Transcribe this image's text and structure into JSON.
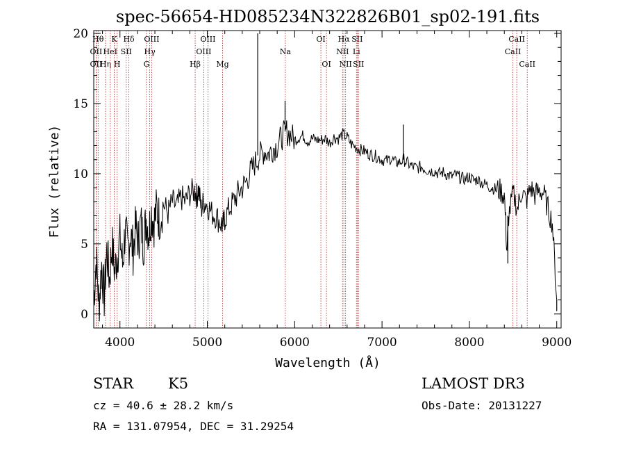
{
  "chart_data": {
    "type": "line",
    "title": "spec-56654-HD085234N322826B01_sp02-191.fits",
    "xlabel": "Wavelength (Å)",
    "ylabel": "Flux (relative)",
    "xlim": [
      3700,
      9050
    ],
    "ylim": [
      -1,
      20.2
    ],
    "xticks": [
      4000,
      5000,
      6000,
      7000,
      8000,
      9000
    ],
    "yticks": [
      0,
      5,
      10,
      15,
      20
    ],
    "line_color": "#000000",
    "marker_color": "#b22222",
    "series": [
      {
        "name": "flux",
        "x": [
          3700,
          3730,
          3760,
          3790,
          3820,
          3850,
          3880,
          3910,
          3940,
          3970,
          4000,
          4030,
          4060,
          4090,
          4120,
          4150,
          4180,
          4210,
          4240,
          4270,
          4300,
          4330,
          4360,
          4390,
          4420,
          4450,
          4500,
          4550,
          4600,
          4650,
          4700,
          4750,
          4800,
          4850,
          4880,
          4900,
          4930,
          4960,
          5000,
          5050,
          5100,
          5150,
          5180,
          5200,
          5250,
          5300,
          5350,
          5400,
          5450,
          5500,
          5550,
          5600,
          5650,
          5700,
          5750,
          5800,
          5850,
          5900,
          5950,
          6000,
          6050,
          6100,
          6150,
          6200,
          6250,
          6300,
          6350,
          6400,
          6450,
          6500,
          6550,
          6600,
          6650,
          6700,
          6750,
          6800,
          6850,
          6900,
          6950,
          7000,
          7050,
          7100,
          7150,
          7200,
          7250,
          7300,
          7350,
          7400,
          7450,
          7500,
          7550,
          7600,
          7650,
          7700,
          7750,
          7800,
          7850,
          7900,
          7950,
          8000,
          8050,
          8100,
          8150,
          8200,
          8250,
          8300,
          8350,
          8400,
          8430,
          8450,
          8500,
          8550,
          8600,
          8650,
          8700,
          8750,
          8800,
          8850,
          8900,
          8950,
          9000
        ],
        "y": [
          1.0,
          4.0,
          0.5,
          3.5,
          1.2,
          4.5,
          2.5,
          5.0,
          3.0,
          4.2,
          5.5,
          3.5,
          6.0,
          4.5,
          5.8,
          4.5,
          6.2,
          5.2,
          6.5,
          5.0,
          6.8,
          5.8,
          7.2,
          6.5,
          7.5,
          6.8,
          7.8,
          7.2,
          8.0,
          7.6,
          8.3,
          8.0,
          8.6,
          8.8,
          8.4,
          8.9,
          7.5,
          8.0,
          7.8,
          7.2,
          7.0,
          6.5,
          6.3,
          6.8,
          7.5,
          8.0,
          8.6,
          9.0,
          9.5,
          10.2,
          10.8,
          11.3,
          11.6,
          11.4,
          11.8,
          12.0,
          12.6,
          13.0,
          12.8,
          12.4,
          12.6,
          12.7,
          12.3,
          12.5,
          12.4,
          12.4,
          12.5,
          12.2,
          12.6,
          12.5,
          12.8,
          12.6,
          12.1,
          11.9,
          11.7,
          11.6,
          11.4,
          11.3,
          11.2,
          11.0,
          10.9,
          11.1,
          10.8,
          10.8,
          11.0,
          10.7,
          10.5,
          10.4,
          10.5,
          10.3,
          10.2,
          10.2,
          10.0,
          10.1,
          9.9,
          9.8,
          9.9,
          9.7,
          9.6,
          9.8,
          9.5,
          9.6,
          9.3,
          9.2,
          9.0,
          8.9,
          8.8,
          8.5,
          4.5,
          7.0,
          8.6,
          7.5,
          8.8,
          8.0,
          9.0,
          8.5,
          8.8,
          8.6,
          7.5,
          6.5,
          1.0
        ]
      }
    ],
    "spikes": [
      {
        "x": 5577,
        "y": 20.0
      },
      {
        "x": 5890,
        "y": 15.2
      },
      {
        "x": 7245,
        "y": 13.5
      },
      {
        "x": 8440,
        "y": 3.6
      },
      {
        "x": 9000,
        "y": 0.2
      }
    ],
    "lines": [
      {
        "x": 3750,
        "label": "Hθ",
        "row": 0
      },
      {
        "x": 3727,
        "label": "OII",
        "row": 1
      },
      {
        "x": 3727,
        "label": "OII",
        "row": 2
      },
      {
        "x": 3835,
        "label": "Hη",
        "row": 2
      },
      {
        "x": 3889,
        "label": "HeI",
        "row": 1
      },
      {
        "x": 3934,
        "label": "K",
        "row": 0
      },
      {
        "x": 3968,
        "label": "H",
        "row": 2
      },
      {
        "x": 4072,
        "label": "SII",
        "row": 1
      },
      {
        "x": 4102,
        "label": "Hδ",
        "row": 0
      },
      {
        "x": 4304,
        "label": "G",
        "row": 2
      },
      {
        "x": 4341,
        "label": "Hγ",
        "row": 1
      },
      {
        "x": 4363,
        "label": "OIII",
        "row": 0
      },
      {
        "x": 4861,
        "label": "Hβ",
        "row": 2
      },
      {
        "x": 4959,
        "label": "OIII",
        "row": 1
      },
      {
        "x": 5007,
        "label": "OIII",
        "row": 0
      },
      {
        "x": 5175,
        "label": "Mg",
        "row": 2
      },
      {
        "x": 5893,
        "label": "Na",
        "row": 1
      },
      {
        "x": 6300,
        "label": "OI",
        "row": 0
      },
      {
        "x": 6364,
        "label": "OI",
        "row": 2
      },
      {
        "x": 6548,
        "label": "NII",
        "row": 1
      },
      {
        "x": 6563,
        "label": "Hα",
        "row": 0
      },
      {
        "x": 6583,
        "label": "NII",
        "row": 2
      },
      {
        "x": 6707,
        "label": "Li",
        "row": 1
      },
      {
        "x": 6716,
        "label": "SII",
        "row": 0
      },
      {
        "x": 6731,
        "label": "SII",
        "row": 2
      },
      {
        "x": 8498,
        "label": "CaII",
        "row": 1
      },
      {
        "x": 8542,
        "label": "CaII",
        "row": 0
      },
      {
        "x": 8662,
        "label": "CaII",
        "row": 2
      }
    ]
  },
  "info": {
    "class_label": "STAR",
    "subclass": "K5",
    "survey": "LAMOST DR3",
    "redshift": "cz =  40.6 ± 28.2 km/s",
    "obs_date": "Obs-Date: 20131227",
    "coords": "RA = 131.07954, DEC =  31.29254"
  }
}
